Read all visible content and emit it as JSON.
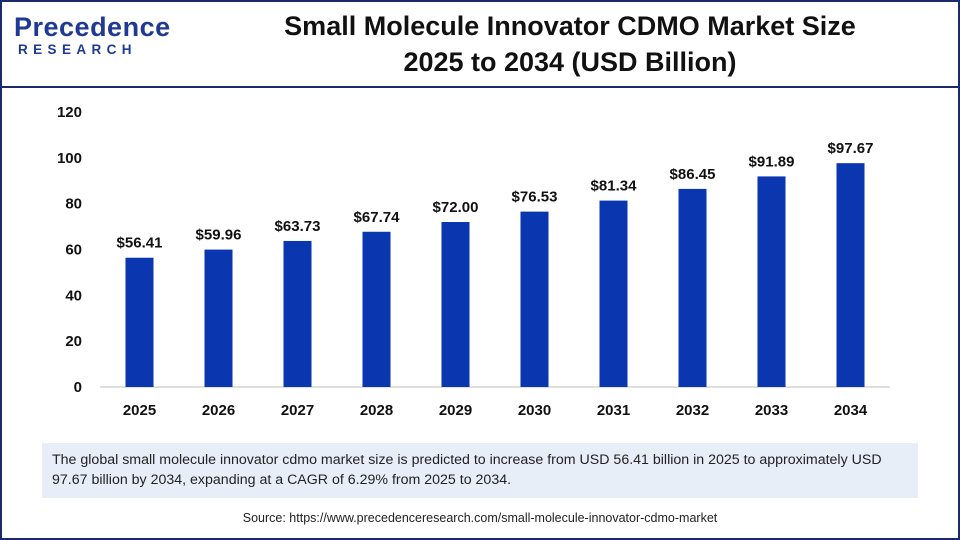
{
  "brand": {
    "name": "Precedence",
    "sub": "RESEARCH",
    "color": "#1f3a93"
  },
  "chart_data": {
    "type": "bar",
    "title": "Small Molecule Innovator CDMO Market Size 2025 to 2034 (USD Billion)",
    "title_line1": "Small Molecule Innovator CDMO Market Size",
    "title_line2": "2025 to 2034 (USD Billion)",
    "categories": [
      "2025",
      "2026",
      "2027",
      "2028",
      "2029",
      "2030",
      "2031",
      "2032",
      "2033",
      "2034"
    ],
    "values": [
      56.41,
      59.96,
      63.73,
      67.74,
      72.0,
      76.53,
      81.34,
      86.45,
      91.89,
      97.67
    ],
    "value_labels": [
      "$56.41",
      "$59.96",
      "$63.73",
      "$67.74",
      "$72.00",
      "$76.53",
      "$81.34",
      "$86.45",
      "$91.89",
      "$97.67"
    ],
    "yticks": [
      0,
      20,
      40,
      60,
      80,
      100,
      120
    ],
    "ylim": [
      0,
      120
    ],
    "xlabel": "",
    "ylabel": "",
    "bar_color": "#0a36b0",
    "grid": false
  },
  "caption": "The global small molecule innovator cdmo market size is predicted to increase from USD 56.41 billion in 2025 to approximately USD 97.67 billion by 2034, expanding at a CAGR of 6.29% from 2025 to 2034.",
  "source": "Source: https://www.precedenceresearch.com/small-molecule-innovator-cdmo-market"
}
